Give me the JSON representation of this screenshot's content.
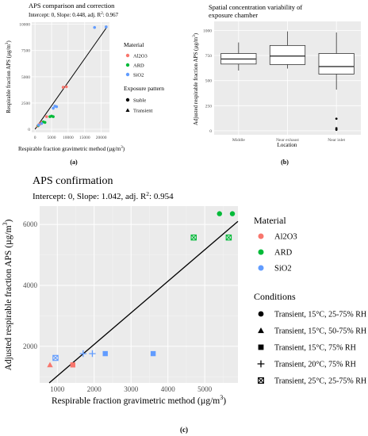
{
  "panels": {
    "a": {
      "caption": "(a)",
      "chart_data": {
        "type": "scatter",
        "title": "APS comparison and correction",
        "subtitle": "Intercept: 0, Slope: 0.448, adj. R²: 0.967",
        "subtitle_pre": "Intercept: 0, Slope: 0.448, adj. R",
        "subtitle_sup": "2",
        "subtitle_post": ": 0.967",
        "xlabel": "Respirable fraction gravimetric method (µg/m³)",
        "xlabel_pre": "Respirable fraction gravimetric method (µg/m",
        "xlabel_sup": "3",
        "xlabel_post": ")",
        "ylabel": "Respirable fraction APS (µg/m³)",
        "ylabel_pre": "Respirable fraction APS (µg/m",
        "ylabel_sup": "3",
        "ylabel_post": ")",
        "xticks": [
          0,
          5000,
          10000,
          15000,
          20000
        ],
        "yticks": [
          0,
          2500,
          5000,
          7500,
          10000
        ],
        "xlim": [
          -1000,
          22500
        ],
        "ylim": [
          -300,
          10200
        ],
        "fit_slope": 0.448,
        "legend_material_title": "Material",
        "legend_pattern_title": "Exposure pattern",
        "materials": [
          {
            "name": "Al2O3",
            "color": "#f8766d"
          },
          {
            "name": "ARD",
            "color": "#00ba38"
          },
          {
            "name": "SiO2",
            "color": "#619cff"
          }
        ],
        "patterns": [
          {
            "name": "Stable",
            "shape": "circle"
          },
          {
            "name": "Transient",
            "shape": "triangle"
          }
        ],
        "points": [
          {
            "x": 800,
            "y": 300,
            "m": "Al2O3",
            "s": "circle"
          },
          {
            "x": 1200,
            "y": 450,
            "m": "Al2O3",
            "s": "circle"
          },
          {
            "x": 1500,
            "y": 500,
            "m": "Al2O3",
            "s": "circle"
          },
          {
            "x": 2000,
            "y": 650,
            "m": "Al2O3",
            "s": "circle"
          },
          {
            "x": 3500,
            "y": 1200,
            "m": "Al2O3",
            "s": "circle"
          },
          {
            "x": 8500,
            "y": 4000,
            "m": "Al2O3",
            "s": "circle"
          },
          {
            "x": 9500,
            "y": 4050,
            "m": "Al2O3",
            "s": "circle"
          },
          {
            "x": 1000,
            "y": 350,
            "m": "ARD",
            "s": "circle"
          },
          {
            "x": 2500,
            "y": 700,
            "m": "ARD",
            "s": "circle"
          },
          {
            "x": 3000,
            "y": 650,
            "m": "ARD",
            "s": "circle"
          },
          {
            "x": 4500,
            "y": 1200,
            "m": "ARD",
            "s": "circle"
          },
          {
            "x": 5000,
            "y": 1250,
            "m": "ARD",
            "s": "circle"
          },
          {
            "x": 5500,
            "y": 1200,
            "m": "ARD",
            "s": "circle"
          },
          {
            "x": 1100,
            "y": 400,
            "m": "SiO2",
            "s": "circle"
          },
          {
            "x": 2000,
            "y": 550,
            "m": "SiO2",
            "s": "circle"
          },
          {
            "x": 5500,
            "y": 2000,
            "m": "SiO2",
            "s": "circle"
          },
          {
            "x": 6000,
            "y": 2200,
            "m": "SiO2",
            "s": "circle"
          },
          {
            "x": 6500,
            "y": 2150,
            "m": "SiO2",
            "s": "circle"
          },
          {
            "x": 18000,
            "y": 9700,
            "m": "SiO2",
            "s": "circle"
          },
          {
            "x": 21500,
            "y": 9750,
            "m": "SiO2",
            "s": "circle"
          }
        ]
      }
    },
    "b": {
      "caption": "(b)",
      "chart_data": {
        "type": "box",
        "title": "Spatial concentration variability of exposure chamber",
        "title_lines": [
          "Spatial concentration variability of",
          "exposure chamber"
        ],
        "xlabel": "Location",
        "ylabel": "Adjusted respirable fraction APS (µg/m³)",
        "ylabel_pre": "Adjusted respirable fraction APS (µg/m",
        "ylabel_sup": "3",
        "ylabel_post": ")",
        "yticks": [
          0,
          250,
          500,
          750,
          1000
        ],
        "ylim": [
          -40,
          1090
        ],
        "categories": [
          "Middle",
          "Near exhaust",
          "Near inlet"
        ],
        "boxes": [
          {
            "min": 600,
            "q1": 665,
            "median": 715,
            "q3": 770,
            "max": 880,
            "outliers": []
          },
          {
            "min": 620,
            "q1": 660,
            "median": 745,
            "q3": 850,
            "max": 990,
            "outliers": []
          },
          {
            "min": 410,
            "q1": 565,
            "median": 640,
            "q3": 770,
            "max": 980,
            "outliers": [
              120,
              25,
              10
            ]
          }
        ]
      }
    },
    "c": {
      "caption": "(c)",
      "chart_data": {
        "type": "scatter",
        "title": "APS confirmation",
        "subtitle": "Intercept: 0, Slope: 1.042, adj. R²: 0.954",
        "subtitle_pre": "Intercept: 0, Slope: 1.042, adj. R",
        "subtitle_sup": "2",
        "subtitle_post": ": 0.954",
        "xlabel": "Respirable fraction gravimetric method (µg/m³)",
        "xlabel_pre": "Respirable fraction gravimetric method (µg/m",
        "xlabel_sup": "3",
        "xlabel_post": ")",
        "ylabel": "Adjusted respirable fraction APS (µg/m³)",
        "ylabel_pre": "Adjusted respirable fraction APS (µg/m",
        "ylabel_sup": "3",
        "ylabel_post": ")",
        "xticks": [
          1000,
          2000,
          3000,
          4000,
          5000
        ],
        "yticks": [
          2000,
          4000,
          6000
        ],
        "xlim": [
          520,
          5900
        ],
        "ylim": [
          800,
          6600
        ],
        "fit": {
          "x0": 780,
          "y0": 800,
          "x1": 5900,
          "y1": 6100
        },
        "legend_material_title": "Material",
        "legend_conditions_title": "Conditions",
        "materials": [
          {
            "name": "Al2O3",
            "color": "#f8766d"
          },
          {
            "name": "ARD",
            "color": "#00ba38"
          },
          {
            "name": "SiO2",
            "color": "#619cff"
          }
        ],
        "conditions": [
          {
            "name": "Transient, 15°C, 25-75% RH",
            "shape": "circle"
          },
          {
            "name": "Transient, 15°C, 50-75% RH",
            "shape": "triangle"
          },
          {
            "name": "Transient, 15°C, 75% RH",
            "shape": "square"
          },
          {
            "name": "Transient, 20°C, 75% RH",
            "shape": "plus"
          },
          {
            "name": "Transient, 25°C, 25-75% RH",
            "shape": "boxx"
          }
        ],
        "points": [
          {
            "x": 800,
            "y": 1390,
            "m": "Al2O3",
            "s": "triangle"
          },
          {
            "x": 1420,
            "y": 1390,
            "m": "Al2O3",
            "s": "square"
          },
          {
            "x": 5400,
            "y": 6350,
            "m": "ARD",
            "s": "circle"
          },
          {
            "x": 5750,
            "y": 6350,
            "m": "ARD",
            "s": "circle"
          },
          {
            "x": 4700,
            "y": 5570,
            "m": "ARD",
            "s": "boxx"
          },
          {
            "x": 5650,
            "y": 5570,
            "m": "ARD",
            "s": "boxx"
          },
          {
            "x": 950,
            "y": 1620,
            "m": "SiO2",
            "s": "boxx"
          },
          {
            "x": 1700,
            "y": 1760,
            "m": "SiO2",
            "s": "plus"
          },
          {
            "x": 1950,
            "y": 1760,
            "m": "SiO2",
            "s": "plus"
          },
          {
            "x": 2300,
            "y": 1760,
            "m": "SiO2",
            "s": "square"
          },
          {
            "x": 3600,
            "y": 1760,
            "m": "SiO2",
            "s": "square"
          }
        ]
      }
    }
  }
}
